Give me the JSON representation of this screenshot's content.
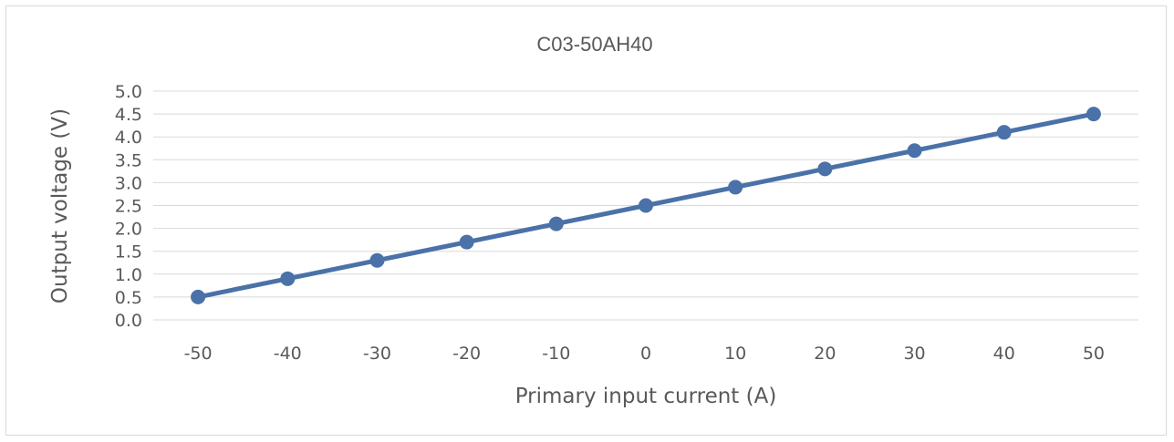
{
  "chart_data": {
    "type": "line",
    "title": "C03-50AH40",
    "xlabel": "Primary input current (A)",
    "ylabel": "Output voltage (V)",
    "categories": [
      "-50",
      "-40",
      "-30",
      "-20",
      "-10",
      "0",
      "10",
      "20",
      "30",
      "40",
      "50"
    ],
    "x": [
      -50,
      -40,
      -30,
      -20,
      -10,
      0,
      10,
      20,
      30,
      40,
      50
    ],
    "series": [
      {
        "values": [
          0.5,
          0.9,
          1.3,
          1.7,
          2.1,
          2.5,
          2.9,
          3.3,
          3.7,
          4.1,
          4.5
        ],
        "color": "#4a72a8"
      }
    ],
    "ylim": [
      0.0,
      5.0
    ],
    "yticks": [
      "0.0",
      "0.5",
      "1.0",
      "1.5",
      "2.0",
      "2.5",
      "3.0",
      "3.5",
      "4.0",
      "4.5",
      "5.0"
    ],
    "grid": true,
    "legend": "none"
  }
}
